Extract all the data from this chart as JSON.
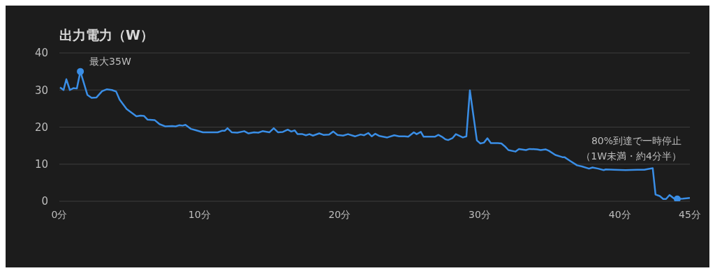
{
  "chart_data": {
    "type": "line",
    "title": "出力電力（W）",
    "x": [
      0.05,
      0.3,
      0.5,
      0.75,
      1.0,
      1.25,
      1.5,
      2.0,
      2.3,
      2.65,
      3.05,
      3.4,
      3.75,
      4.05,
      4.3,
      4.8,
      5.15,
      5.5,
      5.8,
      6.05,
      6.3,
      6.8,
      7.15,
      7.55,
      8.05,
      8.3,
      8.55,
      8.8,
      9.0,
      9.4,
      9.7,
      10.25,
      11.3,
      11.6,
      11.8,
      12.0,
      12.3,
      12.7,
      13.2,
      13.5,
      13.9,
      14.2,
      14.5,
      15.0,
      15.3,
      15.6,
      15.95,
      16.3,
      16.55,
      16.8,
      17.0,
      17.35,
      17.6,
      17.85,
      18.1,
      18.55,
      18.85,
      19.25,
      19.55,
      19.85,
      20.25,
      20.6,
      21.1,
      21.5,
      21.75,
      22.05,
      22.3,
      22.55,
      22.85,
      23.4,
      23.9,
      24.25,
      24.65,
      24.9,
      25.3,
      25.5,
      25.8,
      26.0,
      26.8,
      27.05,
      27.3,
      27.55,
      27.75,
      28.05,
      28.3,
      28.8,
      29.05,
      29.3,
      29.8,
      30.05,
      30.3,
      30.55,
      30.8,
      31.3,
      31.55,
      31.8,
      32.05,
      32.55,
      32.8,
      33.3,
      33.55,
      34.1,
      34.35,
      34.7,
      34.95,
      35.4,
      35.9,
      36.05,
      36.45,
      36.95,
      37.3,
      37.8,
      38.05,
      38.45,
      38.85,
      39.0,
      39.6,
      40.4,
      41.25,
      41.75,
      42.0,
      42.35,
      42.55,
      42.85,
      43.1,
      43.3,
      43.55,
      43.85,
      44.1,
      44.5,
      45.0
    ],
    "series": [
      {
        "color": "#3a8ee6",
        "values": [
          30.7,
          30,
          32.9,
          30,
          30.5,
          30.4,
          35,
          28.7,
          27.9,
          28,
          29.7,
          30.2,
          30,
          29.6,
          27.4,
          24.9,
          23.9,
          22.9,
          23.1,
          23,
          22,
          21.9,
          20.8,
          20.2,
          20.3,
          20.2,
          20.5,
          20.4,
          20.6,
          19.5,
          19.2,
          18.6,
          18.6,
          19,
          19,
          19.7,
          18.6,
          18.5,
          18.9,
          18.3,
          18.6,
          18.5,
          18.9,
          18.6,
          19.7,
          18.6,
          18.7,
          19.3,
          18.8,
          19.1,
          18.1,
          18.1,
          17.8,
          18.1,
          17.7,
          18.3,
          17.9,
          18,
          18.8,
          17.9,
          17.7,
          18.1,
          17.5,
          18,
          17.8,
          18.4,
          17.5,
          18.2,
          17.6,
          17.2,
          17.8,
          17.5,
          17.5,
          17.4,
          18.6,
          18.1,
          18.7,
          17.4,
          17.4,
          17.9,
          17.4,
          16.7,
          16.5,
          17,
          18.1,
          17.2,
          17.5,
          29.9,
          16.4,
          15.6,
          15.8,
          17,
          15.7,
          15.7,
          15.6,
          14.8,
          13.8,
          13.4,
          14.1,
          13.8,
          14.1,
          14,
          13.8,
          14,
          13.6,
          12.5,
          11.9,
          11.9,
          10.9,
          9.7,
          9.4,
          8.8,
          9.1,
          8.8,
          8.4,
          8.6,
          8.5,
          8.4,
          8.5,
          8.5,
          8.7,
          8.9,
          1.8,
          1.4,
          0.6,
          0.6,
          1.7,
          0.8,
          0.6,
          0.7,
          0.9
        ]
      },
      {
        "type": "scatter",
        "color": "#3a8ee6",
        "marker": "circle",
        "x": [
          44.1
        ],
        "values": [
          0.6
        ]
      }
    ],
    "xlim": [
      0,
      45
    ],
    "xticks": [
      {
        "value": 0,
        "label": "0分"
      },
      {
        "value": 10,
        "label": "10分"
      },
      {
        "value": 20,
        "label": "20分"
      },
      {
        "value": 30,
        "label": "30分"
      },
      {
        "value": 40,
        "label": "40分"
      },
      {
        "value": 45,
        "label": "45分"
      }
    ],
    "ylim": [
      0,
      40
    ],
    "yticks": [
      0,
      10,
      20,
      30,
      40
    ],
    "grid": "y",
    "line_style": "solid",
    "annotations": [
      {
        "text": "最大35W",
        "x": 1.5,
        "y": 35
      },
      "80%到達で一時停止",
      "（1W未満・約4分半）"
    ]
  }
}
